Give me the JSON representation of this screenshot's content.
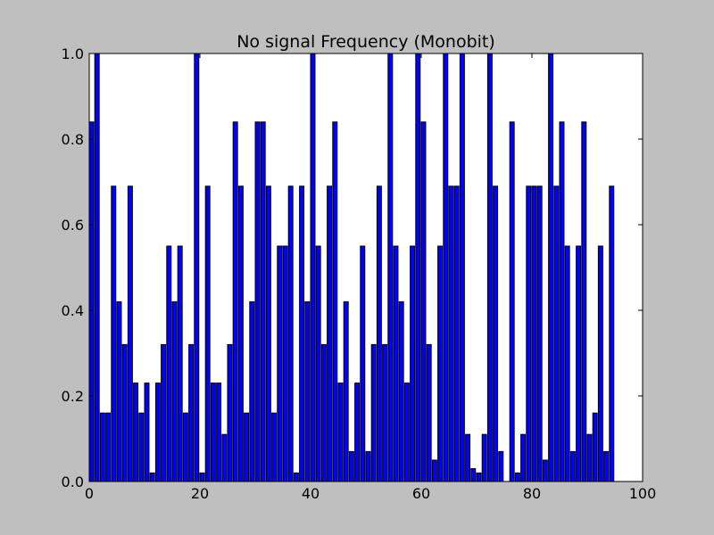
{
  "chart_data": {
    "type": "bar",
    "title": "No signal Frequency (Monobit)",
    "xlabel": "",
    "ylabel": "",
    "xlim": [
      0,
      100
    ],
    "ylim": [
      0.0,
      1.0
    ],
    "x_ticks": [
      "0",
      "20",
      "40",
      "60",
      "80",
      "100"
    ],
    "y_ticks": [
      "0.0",
      "0.2",
      "0.4",
      "0.6",
      "0.8",
      "1.0"
    ],
    "grid": false,
    "bar_color": "#0000ff",
    "bar_edge_color": "#000000",
    "x": [
      0,
      1,
      2,
      3,
      4,
      5,
      6,
      7,
      8,
      9,
      10,
      11,
      12,
      13,
      14,
      15,
      16,
      17,
      18,
      19,
      20,
      21,
      22,
      23,
      24,
      25,
      26,
      27,
      28,
      29,
      30,
      31,
      32,
      33,
      34,
      35,
      36,
      37,
      38,
      39,
      40,
      41,
      42,
      43,
      44,
      45,
      46,
      47,
      48,
      49,
      50,
      51,
      52,
      53,
      54,
      55,
      56,
      57,
      58,
      59,
      60,
      61,
      62,
      63,
      64,
      65,
      66,
      67,
      68,
      69,
      70,
      71,
      72,
      73,
      74,
      75,
      76,
      77,
      78,
      79,
      80,
      81,
      82,
      83,
      84,
      85,
      86,
      87,
      88,
      89,
      90,
      91,
      92,
      93,
      94
    ],
    "values": [
      0.84,
      1.0,
      0.16,
      0.16,
      0.69,
      0.42,
      0.32,
      0.69,
      0.23,
      0.16,
      0.23,
      0.02,
      0.23,
      0.32,
      0.55,
      0.42,
      0.55,
      0.16,
      0.32,
      1.0,
      0.02,
      0.69,
      0.23,
      0.23,
      0.11,
      0.32,
      0.84,
      0.69,
      0.16,
      0.42,
      0.84,
      0.84,
      0.69,
      0.16,
      0.55,
      0.55,
      0.69,
      0.02,
      0.69,
      0.42,
      1.0,
      0.55,
      0.32,
      0.69,
      0.84,
      0.23,
      0.42,
      0.07,
      0.23,
      0.55,
      0.07,
      0.32,
      0.69,
      0.32,
      1.0,
      0.55,
      0.42,
      0.23,
      0.55,
      1.0,
      0.84,
      0.32,
      0.05,
      0.55,
      1.0,
      0.69,
      0.69,
      1.0,
      0.11,
      0.03,
      0.02,
      0.11,
      1.0,
      0.69,
      0.07,
      0.0,
      0.84,
      0.02,
      0.11,
      0.69,
      0.69,
      0.69,
      0.05,
      1.0,
      0.69,
      0.84,
      0.55,
      0.07,
      0.55,
      0.84,
      0.11,
      0.16,
      0.55,
      0.07,
      0.69
    ]
  }
}
